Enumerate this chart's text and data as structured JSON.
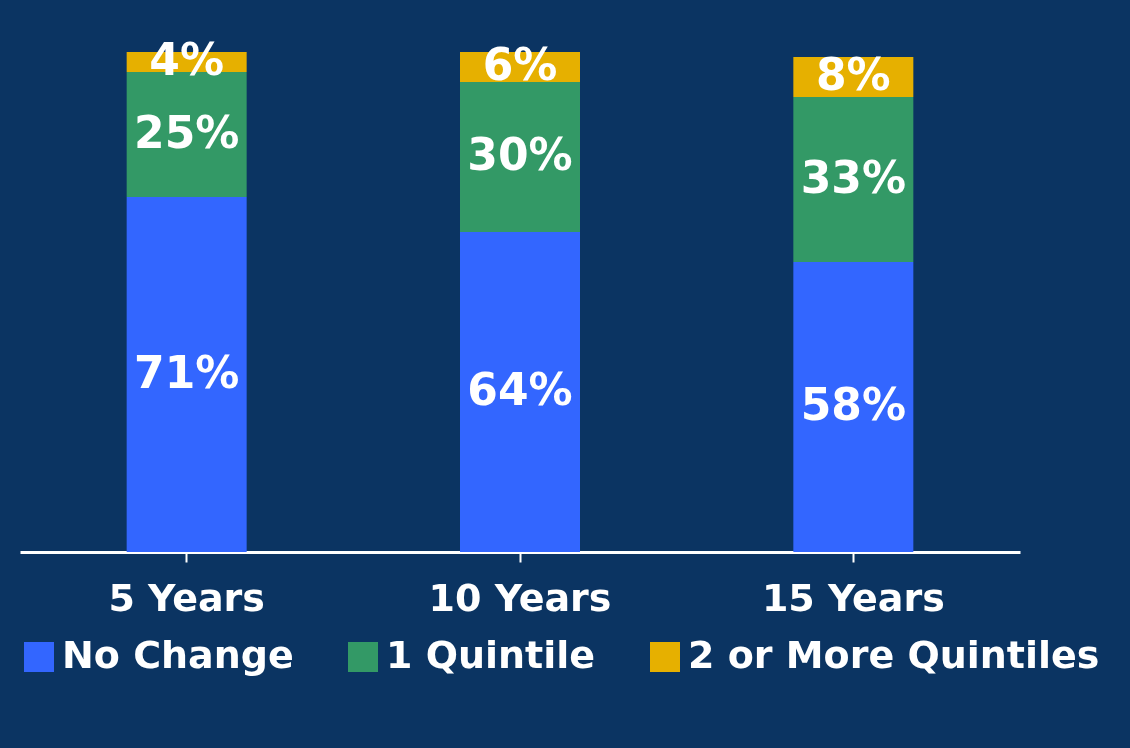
{
  "chart_data": {
    "type": "bar",
    "stacked": true,
    "categories": [
      "5 Years",
      "10 Years",
      "15 Years"
    ],
    "series": [
      {
        "name": "No Change",
        "color": "#3366ff",
        "values": [
          71,
          64,
          58
        ],
        "value_labels": [
          "71%",
          "64%",
          "58%"
        ]
      },
      {
        "name": "1 Quintile",
        "color": "#339966",
        "values": [
          25,
          30,
          33
        ],
        "value_labels": [
          "25%",
          "30%",
          "33%"
        ]
      },
      {
        "name": "2 or More Quintiles",
        "color": "#e6b000",
        "values": [
          4,
          6,
          8
        ],
        "value_labels": [
          "4%",
          "6%",
          "8%"
        ]
      }
    ],
    "legend": "bottom",
    "grid": false,
    "tick_labels": "x"
  }
}
